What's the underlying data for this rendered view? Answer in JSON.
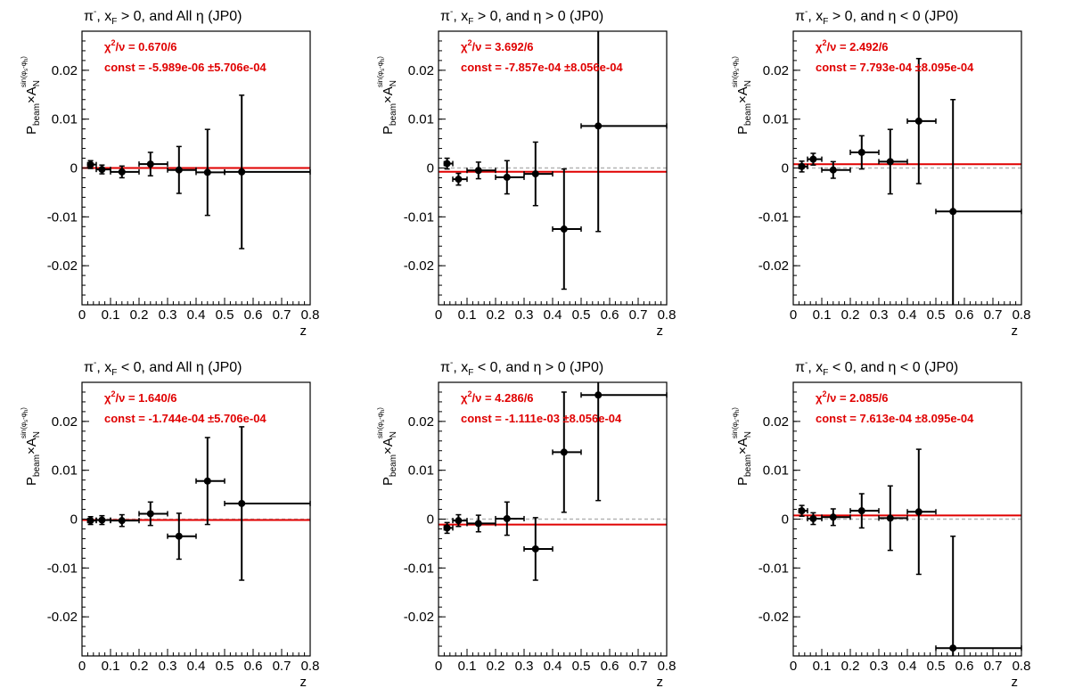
{
  "chart_data": [
    {
      "type": "scatter",
      "title": "π⁻, x_F > 0, and All η (JP0)",
      "title_parts": {
        "base": "π",
        "base_sup": "-",
        "mid": ", x",
        "mid_sub": "F",
        "rest": " > 0, and All η (JP0)"
      },
      "xlabel": "z",
      "ylabel": {
        "main": "P",
        "main_sub": "beam",
        "times": "×A",
        "a_sub": "N",
        "sup": "sin(φ",
        "sup_s": "s",
        "sup_mid": "-φ",
        "sup_h": "h",
        "sup_end": ")"
      },
      "xlim": [
        0,
        0.8
      ],
      "ylim": [
        -0.028,
        0.028
      ],
      "xticks": [
        "0",
        "0.1",
        "0.2",
        "0.3",
        "0.4",
        "0.5",
        "0.6",
        "0.7",
        "0.8"
      ],
      "yticks": [
        "-0.02",
        "-0.01",
        "0",
        "0.01",
        "0.02"
      ],
      "fit": {
        "chi2_label": "χ²/ν = 0.670/6",
        "chi2_pre": "χ",
        "chi2_sup": "2",
        "chi2_post": "/ν = 0.670/6",
        "const_label": "const = -5.989e-06  ±5.706e-04",
        "value": -5.989e-06
      },
      "points": [
        {
          "x": 0.03,
          "xlo": 0.02,
          "xhi": 0.05,
          "y": 0.0007,
          "err": 0.0008
        },
        {
          "x": 0.07,
          "xlo": 0.05,
          "xhi": 0.1,
          "y": -0.0003,
          "err": 0.0009
        },
        {
          "x": 0.14,
          "xlo": 0.1,
          "xhi": 0.2,
          "y": -0.0008,
          "err": 0.0012
        },
        {
          "x": 0.24,
          "xlo": 0.2,
          "xhi": 0.3,
          "y": 0.0008,
          "err": 0.0024
        },
        {
          "x": 0.34,
          "xlo": 0.3,
          "xhi": 0.4,
          "y": -0.0004,
          "err": 0.0048
        },
        {
          "x": 0.44,
          "xlo": 0.4,
          "xhi": 0.5,
          "y": -0.0009,
          "err": 0.0088
        },
        {
          "x": 0.56,
          "xlo": 0.5,
          "xhi": 0.8,
          "y": -0.0008,
          "err": 0.0157
        }
      ]
    },
    {
      "type": "scatter",
      "title": "π⁻, x_F > 0, and η > 0 (JP0)",
      "title_parts": {
        "base": "π",
        "base_sup": "-",
        "mid": ", x",
        "mid_sub": "F",
        "rest": " > 0, and η > 0 (JP0)"
      },
      "xlabel": "z",
      "ylabel": {
        "main": "P",
        "main_sub": "beam",
        "times": "×A",
        "a_sub": "N",
        "sup": "sin(φ",
        "sup_s": "s",
        "sup_mid": "-φ",
        "sup_h": "h",
        "sup_end": ")"
      },
      "xlim": [
        0,
        0.8
      ],
      "ylim": [
        -0.028,
        0.028
      ],
      "xticks": [
        "0",
        "0.1",
        "0.2",
        "0.3",
        "0.4",
        "0.5",
        "0.6",
        "0.7",
        "0.8"
      ],
      "yticks": [
        "-0.02",
        "-0.01",
        "0",
        "0.01",
        "0.02"
      ],
      "fit": {
        "chi2_label": "χ²/ν = 3.692/6",
        "chi2_pre": "χ",
        "chi2_sup": "2",
        "chi2_post": "/ν = 3.692/6",
        "const_label": "const = -7.857e-04  ±8.056e-04",
        "value": -0.0007857
      },
      "points": [
        {
          "x": 0.03,
          "xlo": 0.02,
          "xhi": 0.05,
          "y": 0.0009,
          "err": 0.0011
        },
        {
          "x": 0.07,
          "xlo": 0.05,
          "xhi": 0.1,
          "y": -0.0023,
          "err": 0.0012
        },
        {
          "x": 0.14,
          "xlo": 0.1,
          "xhi": 0.2,
          "y": -0.0005,
          "err": 0.0017
        },
        {
          "x": 0.24,
          "xlo": 0.2,
          "xhi": 0.3,
          "y": -0.0019,
          "err": 0.0034
        },
        {
          "x": 0.34,
          "xlo": 0.3,
          "xhi": 0.4,
          "y": -0.0012,
          "err": 0.0065
        },
        {
          "x": 0.44,
          "xlo": 0.4,
          "xhi": 0.5,
          "y": -0.0125,
          "err": 0.0123
        },
        {
          "x": 0.56,
          "xlo": 0.5,
          "xhi": 0.8,
          "y": 0.0086,
          "err": 0.0216
        }
      ]
    },
    {
      "type": "scatter",
      "title": "π⁻, x_F > 0, and η < 0 (JP0)",
      "title_parts": {
        "base": "π",
        "base_sup": "-",
        "mid": ", x",
        "mid_sub": "F",
        "rest": " > 0, and η < 0 (JP0)"
      },
      "xlabel": "z",
      "ylabel": {
        "main": "P",
        "main_sub": "beam",
        "times": "×A",
        "a_sub": "N",
        "sup": "sin(φ",
        "sup_s": "s",
        "sup_mid": "-φ",
        "sup_h": "h",
        "sup_end": ")"
      },
      "xlim": [
        0,
        0.8
      ],
      "ylim": [
        -0.028,
        0.028
      ],
      "xticks": [
        "0",
        "0.1",
        "0.2",
        "0.3",
        "0.4",
        "0.5",
        "0.6",
        "0.7",
        "0.8"
      ],
      "yticks": [
        "-0.02",
        "-0.01",
        "0",
        "0.01",
        "0.02"
      ],
      "fit": {
        "chi2_label": "χ²/ν = 2.492/6",
        "chi2_pre": "χ",
        "chi2_sup": "2",
        "chi2_post": "/ν = 2.492/6",
        "const_label": "const = 7.793e-04  ±8.095e-04",
        "value": 0.0007793
      },
      "points": [
        {
          "x": 0.03,
          "xlo": 0.02,
          "xhi": 0.05,
          "y": 0.0003,
          "err": 0.0011
        },
        {
          "x": 0.07,
          "xlo": 0.05,
          "xhi": 0.1,
          "y": 0.0018,
          "err": 0.0012
        },
        {
          "x": 0.14,
          "xlo": 0.1,
          "xhi": 0.2,
          "y": -0.0004,
          "err": 0.0017
        },
        {
          "x": 0.24,
          "xlo": 0.2,
          "xhi": 0.3,
          "y": 0.0032,
          "err": 0.0034
        },
        {
          "x": 0.34,
          "xlo": 0.3,
          "xhi": 0.4,
          "y": 0.0013,
          "err": 0.0066
        },
        {
          "x": 0.44,
          "xlo": 0.4,
          "xhi": 0.5,
          "y": 0.0096,
          "err": 0.0128
        },
        {
          "x": 0.56,
          "xlo": 0.5,
          "xhi": 0.8,
          "y": -0.0089,
          "err": 0.0229
        }
      ]
    },
    {
      "type": "scatter",
      "title": "π⁻, x_F < 0, and All η (JP0)",
      "title_parts": {
        "base": "π",
        "base_sup": "-",
        "mid": ", x",
        "mid_sub": "F",
        "rest": " < 0, and All η (JP0)"
      },
      "xlabel": "z",
      "ylabel": {
        "main": "P",
        "main_sub": "beam",
        "times": "×A",
        "a_sub": "N",
        "sup": "sin(φ",
        "sup_s": "s",
        "sup_mid": "-φ",
        "sup_h": "h",
        "sup_end": ")"
      },
      "xlim": [
        0,
        0.8
      ],
      "ylim": [
        -0.028,
        0.028
      ],
      "xticks": [
        "0",
        "0.1",
        "0.2",
        "0.3",
        "0.4",
        "0.5",
        "0.6",
        "0.7",
        "0.8"
      ],
      "yticks": [
        "-0.02",
        "-0.01",
        "0",
        "0.01",
        "0.02"
      ],
      "fit": {
        "chi2_label": "χ²/ν = 1.640/6",
        "chi2_pre": "χ",
        "chi2_sup": "2",
        "chi2_post": "/ν = 1.640/6",
        "const_label": "const = -1.744e-04  ±5.706e-04",
        "value": -0.0001744
      },
      "points": [
        {
          "x": 0.03,
          "xlo": 0.02,
          "xhi": 0.05,
          "y": -0.0003,
          "err": 0.0008
        },
        {
          "x": 0.07,
          "xlo": 0.05,
          "xhi": 0.1,
          "y": -0.0002,
          "err": 0.0009
        },
        {
          "x": 0.14,
          "xlo": 0.1,
          "xhi": 0.2,
          "y": -0.0003,
          "err": 0.0012
        },
        {
          "x": 0.24,
          "xlo": 0.2,
          "xhi": 0.3,
          "y": 0.0011,
          "err": 0.0024
        },
        {
          "x": 0.34,
          "xlo": 0.3,
          "xhi": 0.4,
          "y": -0.0035,
          "err": 0.0047
        },
        {
          "x": 0.44,
          "xlo": 0.4,
          "xhi": 0.5,
          "y": 0.0078,
          "err": 0.0089
        },
        {
          "x": 0.56,
          "xlo": 0.5,
          "xhi": 0.8,
          "y": 0.0032,
          "err": 0.0157
        }
      ]
    },
    {
      "type": "scatter",
      "title": "π⁻, x_F < 0, and η > 0 (JP0)",
      "title_parts": {
        "base": "π",
        "base_sup": "-",
        "mid": ", x",
        "mid_sub": "F",
        "rest": " < 0, and η > 0 (JP0)"
      },
      "xlabel": "z",
      "ylabel": {
        "main": "P",
        "main_sub": "beam",
        "times": "×A",
        "a_sub": "N",
        "sup": "sin(φ",
        "sup_s": "s",
        "sup_mid": "-φ",
        "sup_h": "h",
        "sup_end": ")"
      },
      "xlim": [
        0,
        0.8
      ],
      "ylim": [
        -0.028,
        0.028
      ],
      "xticks": [
        "0",
        "0.1",
        "0.2",
        "0.3",
        "0.4",
        "0.5",
        "0.6",
        "0.7",
        "0.8"
      ],
      "yticks": [
        "-0.02",
        "-0.01",
        "0",
        "0.01",
        "0.02"
      ],
      "fit": {
        "chi2_label": "χ²/ν = 4.286/6",
        "chi2_pre": "χ",
        "chi2_sup": "2",
        "chi2_post": "/ν = 4.286/6",
        "const_label": "const = -1.111e-03  ±8.056e-04",
        "value": -0.001111
      },
      "points": [
        {
          "x": 0.03,
          "xlo": 0.02,
          "xhi": 0.05,
          "y": -0.0018,
          "err": 0.0011
        },
        {
          "x": 0.07,
          "xlo": 0.05,
          "xhi": 0.1,
          "y": -0.0003,
          "err": 0.0012
        },
        {
          "x": 0.14,
          "xlo": 0.1,
          "xhi": 0.2,
          "y": -0.0009,
          "err": 0.0017
        },
        {
          "x": 0.24,
          "xlo": 0.2,
          "xhi": 0.3,
          "y": 0.0001,
          "err": 0.0034
        },
        {
          "x": 0.34,
          "xlo": 0.3,
          "xhi": 0.4,
          "y": -0.0061,
          "err": 0.0064
        },
        {
          "x": 0.44,
          "xlo": 0.4,
          "xhi": 0.5,
          "y": 0.0137,
          "err": 0.0123
        },
        {
          "x": 0.56,
          "xlo": 0.5,
          "xhi": 0.8,
          "y": 0.0254,
          "err": 0.0216
        }
      ]
    },
    {
      "type": "scatter",
      "title": "π⁻, x_F < 0, and η < 0 (JP0)",
      "title_parts": {
        "base": "π",
        "base_sup": "-",
        "mid": ", x",
        "mid_sub": "F",
        "rest": " < 0, and η < 0 (JP0)"
      },
      "xlabel": "z",
      "ylabel": {
        "main": "P",
        "main_sub": "beam",
        "times": "×A",
        "a_sub": "N",
        "sup": "sin(φ",
        "sup_s": "s",
        "sup_mid": "-φ",
        "sup_h": "h",
        "sup_end": ")"
      },
      "xlim": [
        0,
        0.8
      ],
      "ylim": [
        -0.028,
        0.028
      ],
      "xticks": [
        "0",
        "0.1",
        "0.2",
        "0.3",
        "0.4",
        "0.5",
        "0.6",
        "0.7",
        "0.8"
      ],
      "yticks": [
        "-0.02",
        "-0.01",
        "0",
        "0.01",
        "0.02"
      ],
      "fit": {
        "chi2_label": "χ²/ν = 2.085/6",
        "chi2_pre": "χ",
        "chi2_sup": "2",
        "chi2_post": "/ν = 2.085/6",
        "const_label": "const = 7.613e-04  ±8.095e-04",
        "value": 0.0007613
      },
      "points": [
        {
          "x": 0.03,
          "xlo": 0.02,
          "xhi": 0.05,
          "y": 0.0017,
          "err": 0.0011
        },
        {
          "x": 0.07,
          "xlo": 0.05,
          "xhi": 0.1,
          "y": 0.0001,
          "err": 0.0012
        },
        {
          "x": 0.14,
          "xlo": 0.1,
          "xhi": 0.2,
          "y": 0.0004,
          "err": 0.0017
        },
        {
          "x": 0.24,
          "xlo": 0.2,
          "xhi": 0.3,
          "y": 0.0017,
          "err": 0.0035
        },
        {
          "x": 0.34,
          "xlo": 0.3,
          "xhi": 0.4,
          "y": 0.0002,
          "err": 0.0066
        },
        {
          "x": 0.44,
          "xlo": 0.4,
          "xhi": 0.5,
          "y": 0.0015,
          "err": 0.0128
        },
        {
          "x": 0.56,
          "xlo": 0.5,
          "xhi": 0.8,
          "y": -0.0264,
          "err": 0.0229
        }
      ]
    }
  ],
  "colors": {
    "fit_line": "#e00000",
    "stat_text": "#e00000",
    "markers": "#000000",
    "zero_line": "#b4b4b4",
    "frame": "#000000"
  }
}
